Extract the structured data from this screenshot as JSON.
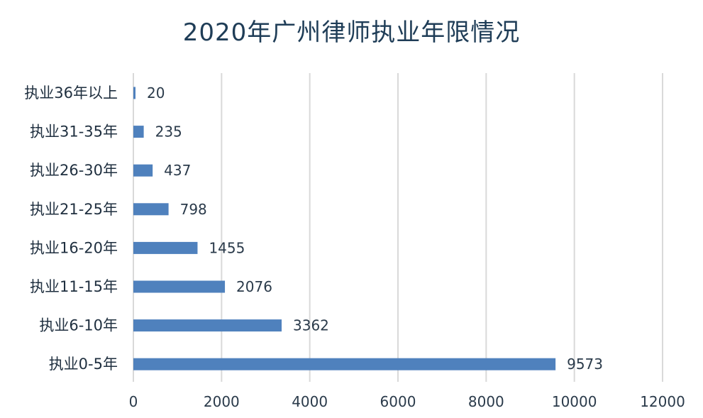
{
  "chart_data": {
    "type": "bar",
    "orientation": "horizontal",
    "title": "2020年广州律师执业年限情况",
    "categories": [
      "执业36年以上",
      "执业31-35年",
      "执业26-30年",
      "执业21-25年",
      "执业16-20年",
      "执业11-15年",
      "执业6-10年",
      "执业0-5年"
    ],
    "values": [
      20,
      235,
      437,
      798,
      1455,
      2076,
      3362,
      9573
    ],
    "xlim": [
      0,
      12000
    ],
    "xticks": [
      0,
      2000,
      4000,
      6000,
      8000,
      10000,
      12000
    ],
    "grid": true,
    "data_labels": true,
    "bar_color": "#4f81bd",
    "grid_color": "#d9d9d9"
  }
}
